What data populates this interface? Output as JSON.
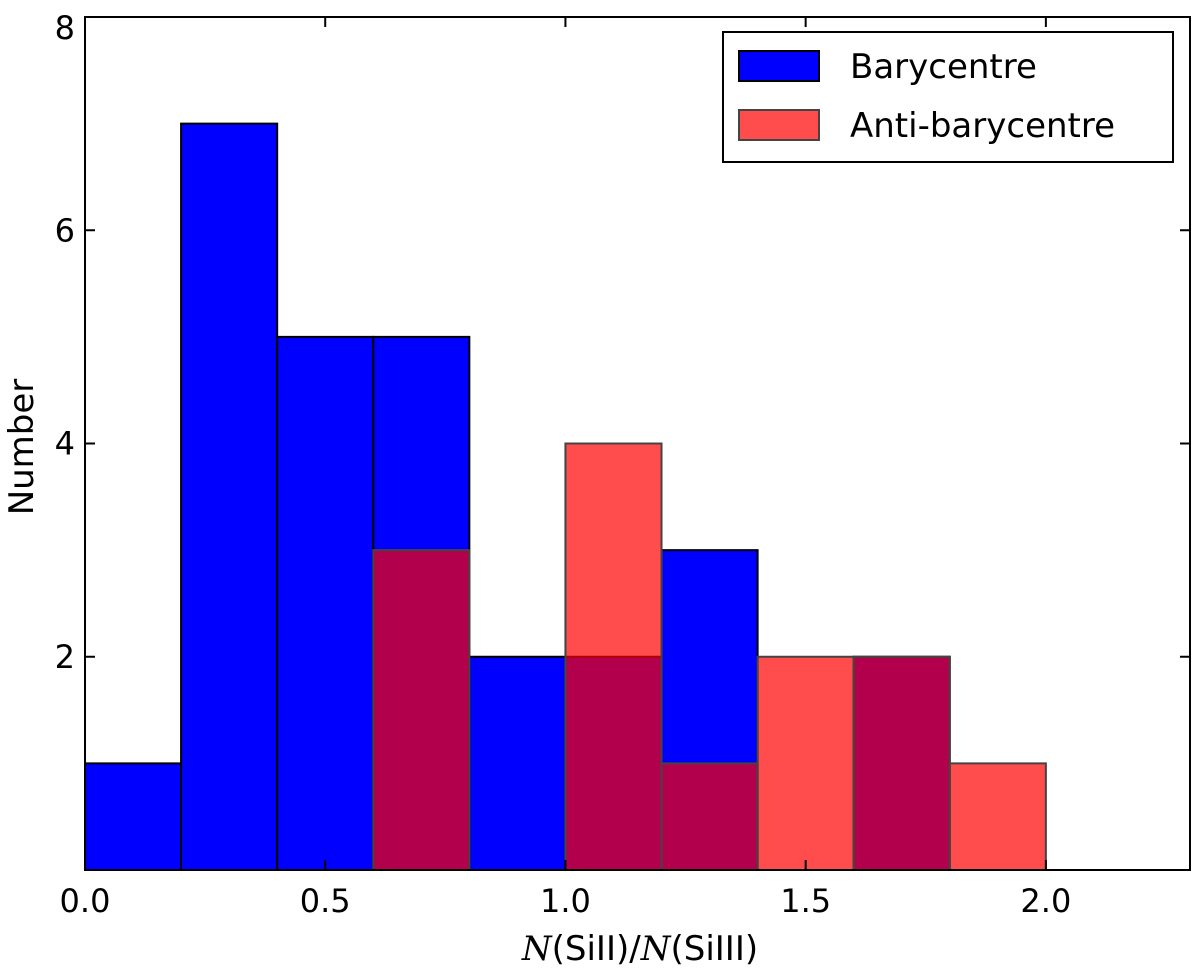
{
  "chart_data": {
    "type": "bar",
    "subtype": "overlapping-histogram",
    "bin_edges": [
      0.0,
      0.2,
      0.4,
      0.6,
      0.8,
      1.0,
      1.2,
      1.4,
      1.6,
      1.8,
      2.0
    ],
    "series": [
      {
        "name": "Barycentre",
        "color": "#0000ff",
        "opacity": 1.0,
        "values": [
          1,
          7,
          5,
          5,
          2,
          2,
          3,
          0,
          2,
          0
        ]
      },
      {
        "name": "Anti-barycentre",
        "color": "#ff0000",
        "opacity": 0.7,
        "values": [
          0,
          0,
          0,
          3,
          0,
          4,
          1,
          2,
          2,
          1
        ]
      }
    ],
    "xlabel": {
      "n1": "N",
      "s1": "(SiII)/",
      "n2": "N",
      "s2": "(SiIII)"
    },
    "ylabel": "Number",
    "xlim": [
      0.0,
      2.3
    ],
    "ylim": [
      0,
      8
    ],
    "xticks": [
      0.0,
      0.5,
      1.0,
      1.5,
      2.0
    ],
    "xtick_labels": [
      "0.0",
      "0.5",
      "1.0",
      "1.5",
      "2.0"
    ],
    "yticks": [
      2,
      4,
      6,
      8
    ],
    "ytick_labels": [
      "2",
      "4",
      "6",
      "8"
    ],
    "grid": false,
    "legend_position": "top-right"
  }
}
